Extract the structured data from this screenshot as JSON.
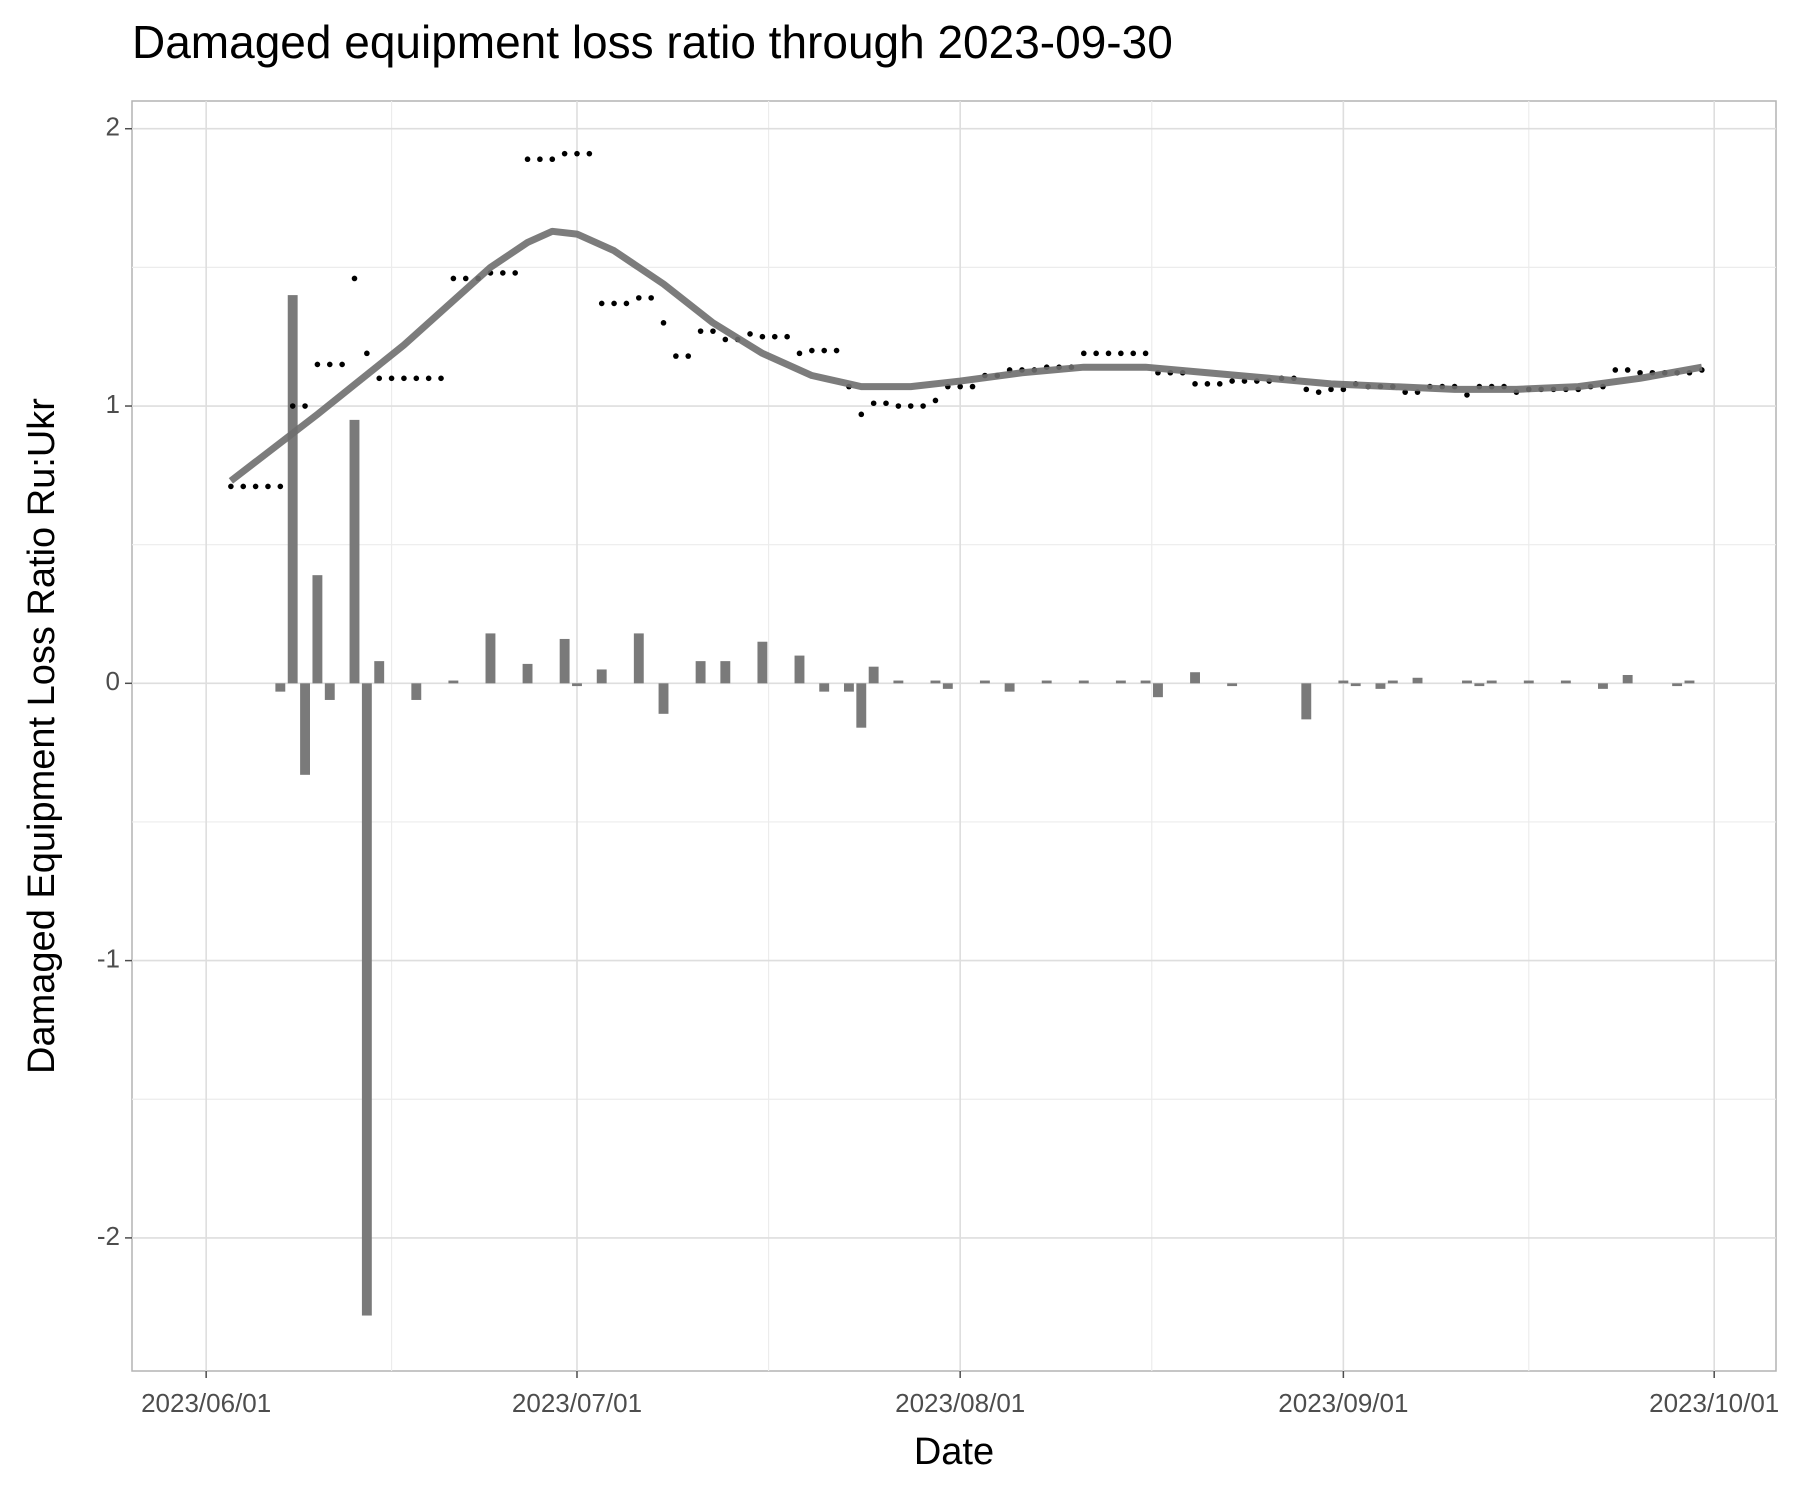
{
  "chart_data": {
    "type": "combo",
    "title": "Damaged equipment loss ratio through 2023-09-30",
    "x_label": "Date",
    "y_label": "Damaged Equipment Loss Ratio Ru:Ukr",
    "xlim": [
      "2023-05-26",
      "2023-10-06"
    ],
    "xticks": [
      {
        "value": "2023-06-01",
        "label": "2023/06/01"
      },
      {
        "value": "2023-07-01",
        "label": "2023/07/01"
      },
      {
        "value": "2023-08-01",
        "label": "2023/08/01"
      },
      {
        "value": "2023-09-01",
        "label": "2023/09/01"
      },
      {
        "value": "2023-10-01",
        "label": "2023/10/01"
      }
    ],
    "ylim": [
      -2.48,
      2.1
    ],
    "yticks": [
      -2,
      -1,
      0,
      1,
      2
    ],
    "grid": true,
    "layers": [
      {
        "type": "bar",
        "color": "#7a7a7a",
        "x": [
          "2023-06-07",
          "2023-06-08",
          "2023-06-09",
          "2023-06-10",
          "2023-06-11",
          "2023-06-13",
          "2023-06-14",
          "2023-06-15",
          "2023-06-18",
          "2023-06-21",
          "2023-06-24",
          "2023-06-27",
          "2023-06-30",
          "2023-07-01",
          "2023-07-03",
          "2023-07-06",
          "2023-07-08",
          "2023-07-11",
          "2023-07-13",
          "2023-07-16",
          "2023-07-19",
          "2023-07-21",
          "2023-07-23",
          "2023-07-24",
          "2023-07-25",
          "2023-07-27",
          "2023-07-30",
          "2023-07-31",
          "2023-08-03",
          "2023-08-05",
          "2023-08-08",
          "2023-08-11",
          "2023-08-14",
          "2023-08-16",
          "2023-08-17",
          "2023-08-20",
          "2023-08-23",
          "2023-08-29",
          "2023-09-01",
          "2023-09-02",
          "2023-09-04",
          "2023-09-05",
          "2023-09-07",
          "2023-09-11",
          "2023-09-12",
          "2023-09-13",
          "2023-09-16",
          "2023-09-19",
          "2023-09-22",
          "2023-09-24",
          "2023-09-28",
          "2023-09-29"
        ],
        "values": [
          -0.03,
          1.4,
          -0.33,
          0.39,
          -0.06,
          0.95,
          -2.28,
          0.08,
          -0.06,
          0.01,
          0.18,
          0.07,
          0.16,
          -0.01,
          0.05,
          0.18,
          -0.11,
          0.08,
          0.08,
          0.15,
          0.1,
          -0.03,
          -0.03,
          -0.16,
          0.06,
          0.01,
          0.01,
          -0.02,
          0.01,
          -0.03,
          0.01,
          0.01,
          0.01,
          0.01,
          -0.05,
          0.04,
          -0.01,
          -0.13,
          0.01,
          -0.01,
          -0.02,
          0.01,
          0.02,
          0.01,
          -0.01,
          0.01,
          0.01,
          0.01,
          -0.02,
          0.03,
          -0.01,
          0.01
        ]
      },
      {
        "type": "scatter",
        "color": "#000000",
        "x": [
          "2023-06-03",
          "2023-06-04",
          "2023-06-05",
          "2023-06-06",
          "2023-06-07",
          "2023-06-08",
          "2023-06-09",
          "2023-06-10",
          "2023-06-11",
          "2023-06-12",
          "2023-06-13",
          "2023-06-14",
          "2023-06-15",
          "2023-06-16",
          "2023-06-17",
          "2023-06-18",
          "2023-06-19",
          "2023-06-20",
          "2023-06-21",
          "2023-06-22",
          "2023-06-23",
          "2023-06-24",
          "2023-06-25",
          "2023-06-26",
          "2023-06-27",
          "2023-06-28",
          "2023-06-29",
          "2023-06-30",
          "2023-07-01",
          "2023-07-02",
          "2023-07-03",
          "2023-07-04",
          "2023-07-05",
          "2023-07-06",
          "2023-07-07",
          "2023-07-08",
          "2023-07-09",
          "2023-07-10",
          "2023-07-11",
          "2023-07-12",
          "2023-07-13",
          "2023-07-14",
          "2023-07-15",
          "2023-07-16",
          "2023-07-17",
          "2023-07-18",
          "2023-07-19",
          "2023-07-20",
          "2023-07-21",
          "2023-07-22",
          "2023-07-23",
          "2023-07-24",
          "2023-07-25",
          "2023-07-26",
          "2023-07-27",
          "2023-07-28",
          "2023-07-29",
          "2023-07-30",
          "2023-07-31",
          "2023-08-01",
          "2023-08-02",
          "2023-08-03",
          "2023-08-04",
          "2023-08-05",
          "2023-08-06",
          "2023-08-07",
          "2023-08-08",
          "2023-08-09",
          "2023-08-10",
          "2023-08-11",
          "2023-08-12",
          "2023-08-13",
          "2023-08-14",
          "2023-08-15",
          "2023-08-16",
          "2023-08-17",
          "2023-08-18",
          "2023-08-19",
          "2023-08-20",
          "2023-08-21",
          "2023-08-22",
          "2023-08-23",
          "2023-08-24",
          "2023-08-25",
          "2023-08-26",
          "2023-08-27",
          "2023-08-28",
          "2023-08-29",
          "2023-08-30",
          "2023-08-31",
          "2023-09-01",
          "2023-09-02",
          "2023-09-03",
          "2023-09-04",
          "2023-09-05",
          "2023-09-06",
          "2023-09-07",
          "2023-09-08",
          "2023-09-09",
          "2023-09-10",
          "2023-09-11",
          "2023-09-12",
          "2023-09-13",
          "2023-09-14",
          "2023-09-15",
          "2023-09-16",
          "2023-09-17",
          "2023-09-18",
          "2023-09-19",
          "2023-09-20",
          "2023-09-21",
          "2023-09-22",
          "2023-09-23",
          "2023-09-24",
          "2023-09-25",
          "2023-09-26",
          "2023-09-27",
          "2023-09-28",
          "2023-09-29",
          "2023-09-30"
        ],
        "values": [
          0.71,
          0.71,
          0.71,
          0.71,
          0.71,
          1.0,
          1.0,
          1.15,
          1.15,
          1.15,
          1.46,
          1.19,
          1.1,
          1.1,
          1.1,
          1.1,
          1.1,
          1.1,
          1.46,
          1.46,
          1.46,
          1.48,
          1.48,
          1.48,
          1.89,
          1.89,
          1.89,
          1.91,
          1.91,
          1.91,
          1.37,
          1.37,
          1.37,
          1.39,
          1.39,
          1.3,
          1.18,
          1.18,
          1.27,
          1.27,
          1.24,
          1.24,
          1.26,
          1.25,
          1.25,
          1.25,
          1.19,
          1.2,
          1.2,
          1.2,
          1.07,
          0.97,
          1.01,
          1.01,
          1.0,
          1.0,
          1.0,
          1.02,
          1.07,
          1.07,
          1.07,
          1.11,
          1.11,
          1.13,
          1.13,
          1.13,
          1.14,
          1.14,
          1.14,
          1.19,
          1.19,
          1.19,
          1.19,
          1.19,
          1.19,
          1.12,
          1.12,
          1.12,
          1.08,
          1.08,
          1.08,
          1.09,
          1.09,
          1.09,
          1.09,
          1.1,
          1.1,
          1.06,
          1.05,
          1.06,
          1.06,
          1.08,
          1.07,
          1.07,
          1.07,
          1.05,
          1.05,
          1.07,
          1.07,
          1.07,
          1.04,
          1.07,
          1.07,
          1.07,
          1.05,
          1.06,
          1.06,
          1.06,
          1.06,
          1.06,
          1.07,
          1.07,
          1.13,
          1.13,
          1.12,
          1.12,
          1.12,
          1.12,
          1.12,
          1.13
        ]
      },
      {
        "type": "line",
        "color": "#6e6e6e",
        "x": [
          "2023-06-03",
          "2023-06-10",
          "2023-06-17",
          "2023-06-21",
          "2023-06-24",
          "2023-06-27",
          "2023-06-29",
          "2023-07-01",
          "2023-07-04",
          "2023-07-08",
          "2023-07-12",
          "2023-07-16",
          "2023-07-20",
          "2023-07-24",
          "2023-07-28",
          "2023-08-01",
          "2023-08-06",
          "2023-08-11",
          "2023-08-16",
          "2023-08-21",
          "2023-08-26",
          "2023-08-31",
          "2023-09-05",
          "2023-09-10",
          "2023-09-15",
          "2023-09-20",
          "2023-09-25",
          "2023-09-30"
        ],
        "values": [
          0.73,
          0.97,
          1.22,
          1.38,
          1.5,
          1.59,
          1.63,
          1.62,
          1.56,
          1.44,
          1.3,
          1.19,
          1.11,
          1.07,
          1.07,
          1.09,
          1.12,
          1.14,
          1.14,
          1.12,
          1.1,
          1.08,
          1.07,
          1.06,
          1.06,
          1.07,
          1.1,
          1.14
        ]
      }
    ]
  }
}
